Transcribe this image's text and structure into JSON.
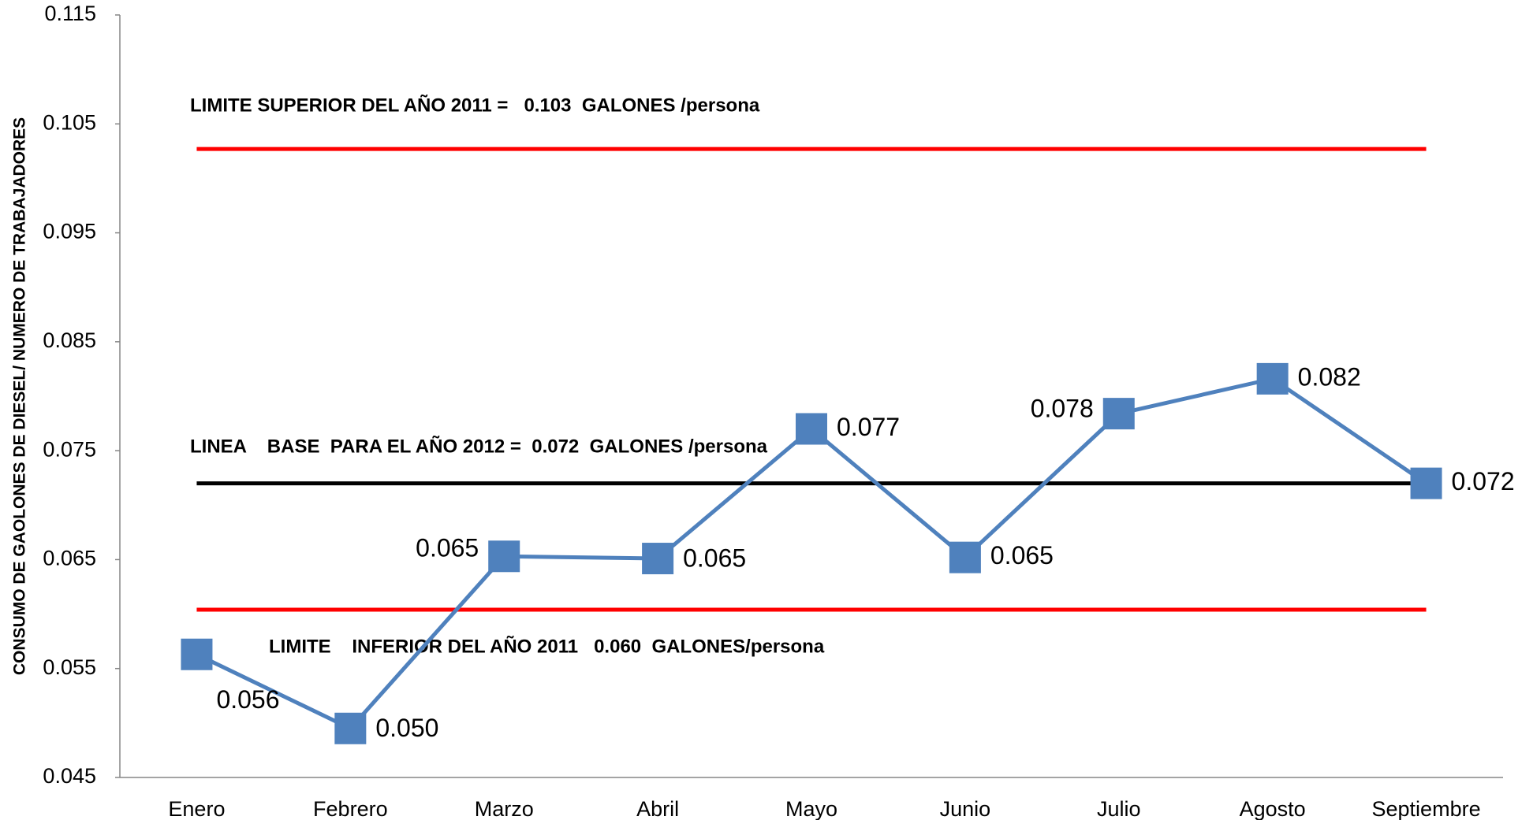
{
  "chart_data": {
    "type": "line",
    "y_label": "CONSUMO DE  GAOLONES DE DIESEL/ NUMERO DE TRABAJADORES",
    "categories": [
      "Enero",
      "Febrero",
      "Marzo",
      "Abril",
      "Mayo",
      "Junio",
      "Julio",
      "Agosto",
      "Septiembre"
    ],
    "series": [
      {
        "color": "#4f81bd",
        "values": [
          0.0563,
          0.0495,
          0.0653,
          0.0651,
          0.077,
          0.0652,
          0.0784,
          0.0816,
          0.072
        ],
        "value_labels": [
          "0.056",
          "0.050",
          "0.065",
          "0.065",
          "0.077",
          "0.065",
          "0.078",
          "0.082",
          "0.072"
        ]
      }
    ],
    "reference_lines": [
      {
        "value": 0.1027,
        "color": "#ff0000",
        "label": "LIMITE SUPERIOR DEL AÑO 2011 =   0.103  GALONES /persona"
      },
      {
        "value": 0.072,
        "color": "#000000",
        "label": "LINEA    BASE  PARA EL AÑO 2012 =  0.072  GALONES /persona"
      },
      {
        "value": 0.0604,
        "color": "#ff0000",
        "label": "LIMITE    INFERIOR DEL AÑO 2011   0.060  GALONES/persona"
      }
    ],
    "ylim": [
      0.045,
      0.115
    ],
    "yticks": [
      0.045,
      0.055,
      0.065,
      0.075,
      0.085,
      0.095,
      0.105,
      0.115
    ]
  }
}
